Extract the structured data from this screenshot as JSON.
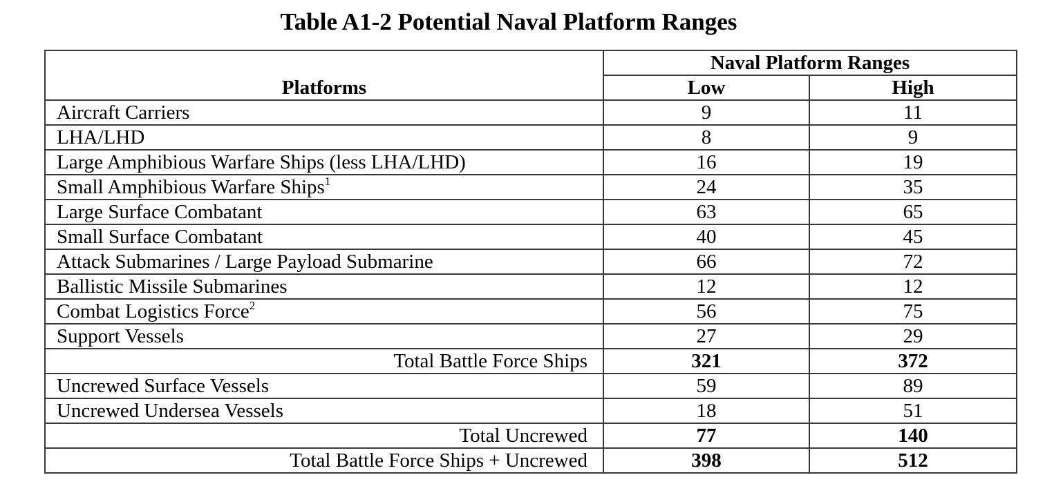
{
  "title": "Table A1-2 Potential Naval Platform Ranges",
  "header": {
    "group": "Naval Platform Ranges",
    "platforms": "Platforms",
    "low": "Low",
    "high": "High"
  },
  "rows": [
    {
      "name": "Aircraft Carriers",
      "sup": "",
      "low": "9",
      "high": "11",
      "total": false
    },
    {
      "name": "LHA/LHD",
      "sup": "",
      "low": "8",
      "high": "9",
      "total": false
    },
    {
      "name": "Large Amphibious Warfare Ships (less LHA/LHD)",
      "sup": "",
      "low": "16",
      "high": "19",
      "total": false
    },
    {
      "name": "Small Amphibious Warfare Ships",
      "sup": "1",
      "low": "24",
      "high": "35",
      "total": false
    },
    {
      "name": "Large Surface Combatant",
      "sup": "",
      "low": "63",
      "high": "65",
      "total": false
    },
    {
      "name": "Small Surface Combatant",
      "sup": "",
      "low": "40",
      "high": "45",
      "total": false
    },
    {
      "name": "Attack Submarines / Large Payload Submarine",
      "sup": "",
      "low": "66",
      "high": "72",
      "total": false
    },
    {
      "name": "Ballistic Missile Submarines",
      "sup": "",
      "low": "12",
      "high": "12",
      "total": false
    },
    {
      "name": "Combat Logistics Force",
      "sup": "2",
      "low": "56",
      "high": "75",
      "total": false
    },
    {
      "name": "Support Vessels",
      "sup": "",
      "low": "27",
      "high": "29",
      "total": false
    },
    {
      "name": "Total Battle Force Ships",
      "sup": "",
      "low": "321",
      "high": "372",
      "total": true
    },
    {
      "name": "Uncrewed Surface Vessels",
      "sup": "",
      "low": "59",
      "high": "89",
      "total": false
    },
    {
      "name": "Uncrewed Undersea Vessels",
      "sup": "",
      "low": "18",
      "high": "51",
      "total": false
    },
    {
      "name": "Total Uncrewed",
      "sup": "",
      "low": "77",
      "high": "140",
      "total": true
    },
    {
      "name": "Total Battle Force Ships + Uncrewed",
      "sup": "",
      "low": "398",
      "high": "512",
      "total": true
    }
  ]
}
